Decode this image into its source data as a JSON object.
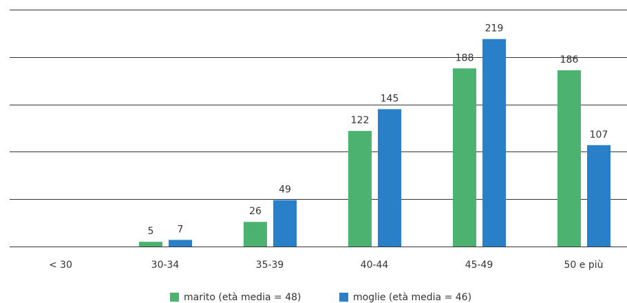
{
  "chart_data": {
    "type": "bar",
    "categories": [
      "< 30",
      "30-34",
      "35-39",
      "40-44",
      "45-49",
      "50 e più"
    ],
    "series": [
      {
        "name": "marito (età media = 48)",
        "color": "#4bb36f",
        "values": [
          null,
          5,
          26,
          122,
          188,
          186
        ]
      },
      {
        "name": "moglie (età media = 46)",
        "color": "#2a7fc9",
        "values": [
          null,
          7,
          49,
          145,
          219,
          107
        ]
      }
    ],
    "ylim": [
      0,
      250
    ],
    "yticks": [
      0,
      50,
      100,
      150,
      200,
      250
    ],
    "grid": true
  }
}
